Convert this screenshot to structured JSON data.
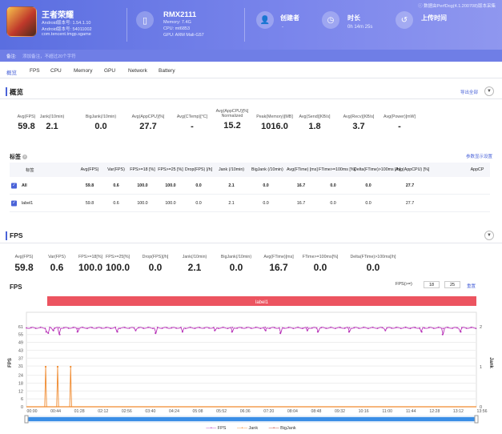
{
  "header": {
    "app_name": "王者荣耀",
    "app_lines": [
      "Android版本号: 1.54.1.10",
      "Android版本号: 54011002",
      "com.tencent.tmgp.sgame"
    ],
    "device_name": "RMX2111",
    "device_lines": [
      "Memory: 7.4G",
      "CPU: mt6853",
      "GPU: ARM Mali-G57"
    ],
    "creator_label": "创建者",
    "creator_value": "-",
    "duration_label": "时长",
    "duration_value": "0h 14m 25s",
    "upload_label": "上传时间",
    "upload_value": "",
    "version_text": "ⓘ 数据由PerfDog(4.1.200708)版本采集"
  },
  "notes": {
    "label": "备注:",
    "placeholder": "添加备注，不超过20个字符"
  },
  "tabs": [
    "概览",
    "FPS",
    "CPU",
    "Memory",
    "GPU",
    "Network",
    "Battery"
  ],
  "overview": {
    "title": "概览",
    "export": "导出全部",
    "collapse_icon": "chevron-down-icon",
    "stats": [
      {
        "label": "Avg(FPS)",
        "value": "59.8"
      },
      {
        "label": "Jank(/10min)",
        "value": "2.1"
      },
      {
        "label": "BigJank(/10min)",
        "value": "0.0"
      },
      {
        "label": "Avg(AppCPU)[%]",
        "value": "27.7"
      },
      {
        "label": "Avg(CTemp)[°C]",
        "value": "-"
      },
      {
        "label": "Avg(AppCPU)[%] Normalized",
        "value": "15.2"
      },
      {
        "label": "Peak(Memory)[MB]",
        "value": "1016.0"
      },
      {
        "label": "Avg(Send)[KB/s]",
        "value": "1.8"
      },
      {
        "label": "Avg(Recv)[KB/s]",
        "value": "3.7"
      },
      {
        "label": "Avg(Power)[mW]",
        "value": "-"
      }
    ]
  },
  "label_table": {
    "title": "标签",
    "settings": "参数显示设置",
    "headers": [
      "标签",
      "Avg(FPS)",
      "Var(FPS)",
      "FPS>=18 [%]",
      "FPS>=25 [%]",
      "Drop(FPS) [/h]",
      "Jank (/10min)",
      "BigJank (/10min)",
      "Avg(FTime) [ms]",
      "FTime>=100ms [%]",
      "Delta(FTime)>100ms [/h]",
      "Avg(AppCPU) [%]",
      "AppCP"
    ],
    "rows": [
      {
        "name": "All",
        "cells": [
          "59.8",
          "0.6",
          "100.0",
          "100.0",
          "0.0",
          "2.1",
          "0.0",
          "16.7",
          "0.0",
          "0.0",
          "27.7"
        ]
      },
      {
        "name": "label1",
        "cells": [
          "59.8",
          "0.6",
          "100.0",
          "100.0",
          "0.0",
          "2.1",
          "0.0",
          "16.7",
          "0.0",
          "0.0",
          "27.7"
        ]
      }
    ]
  },
  "fps_section": {
    "title": "FPS",
    "stats": [
      {
        "label": "Avg(FPS)",
        "value": "59.8"
      },
      {
        "label": "Var(FPS)",
        "value": "0.6"
      },
      {
        "label": "FPS>=18[%]",
        "value": "100.0"
      },
      {
        "label": "FPS>=25[%]",
        "value": "100.0"
      },
      {
        "label": "Drop(FPS)[/h]",
        "value": "0.0"
      },
      {
        "label": "Jank(/10min)",
        "value": "2.1"
      },
      {
        "label": "BigJank(/10min)",
        "value": "0.0"
      },
      {
        "label": "Avg(FTime)[ms]",
        "value": "16.7"
      },
      {
        "label": "FTime>=100ms[%]",
        "value": "0.0"
      },
      {
        "label": "Delta(FTime)>100ms[/h]",
        "value": "0.0"
      }
    ]
  },
  "chart_controls": {
    "chart_title": "FPS",
    "fps_label": "FPS(>=)",
    "threshold1": "18",
    "threshold2": "25",
    "reset": "重置",
    "label_band": "label1"
  },
  "chart_data": {
    "type": "line",
    "title": "",
    "ylabel_left": "FPS",
    "ylabel_right": "Jank",
    "y_ticks": [
      0,
      6,
      12,
      18,
      24,
      31,
      37,
      43,
      49,
      55,
      61
    ],
    "y_right_ticks": [
      0,
      1,
      2
    ],
    "ylim": [
      0,
      67
    ],
    "y_right_lim": [
      0,
      2.2
    ],
    "x_ticks": [
      "00:00",
      "00:44",
      "01:28",
      "02:12",
      "02:56",
      "03:40",
      "04:24",
      "05:08",
      "05:52",
      "06:36",
      "07:20",
      "08:04",
      "08:48",
      "09:32",
      "10:16",
      "11:00",
      "11:44",
      "12:28",
      "13:12",
      "13:56"
    ],
    "x_range_seconds": [
      0,
      865
    ],
    "series": [
      {
        "name": "FPS",
        "color": "#b833b8",
        "baseline": 60,
        "dips": [
          [
            38,
            57
          ],
          [
            42,
            56
          ],
          [
            52,
            58
          ],
          [
            64,
            55
          ],
          [
            98,
            57
          ],
          [
            175,
            57
          ],
          [
            210,
            58
          ],
          [
            248,
            56
          ],
          [
            300,
            57
          ],
          [
            362,
            58
          ],
          [
            395,
            57
          ],
          [
            460,
            58
          ],
          [
            488,
            56
          ],
          [
            540,
            58
          ],
          [
            560,
            57
          ],
          [
            620,
            57
          ],
          [
            690,
            58
          ],
          [
            760,
            57
          ],
          [
            800,
            55
          ],
          [
            835,
            57
          ]
        ]
      },
      {
        "name": "Jank",
        "color": "#f08a2e",
        "spikes": [
          37,
          60,
          85
        ]
      },
      {
        "name": "BigJank",
        "color": "#c0392b",
        "spikes": []
      }
    ],
    "legend_position": "bottom"
  }
}
